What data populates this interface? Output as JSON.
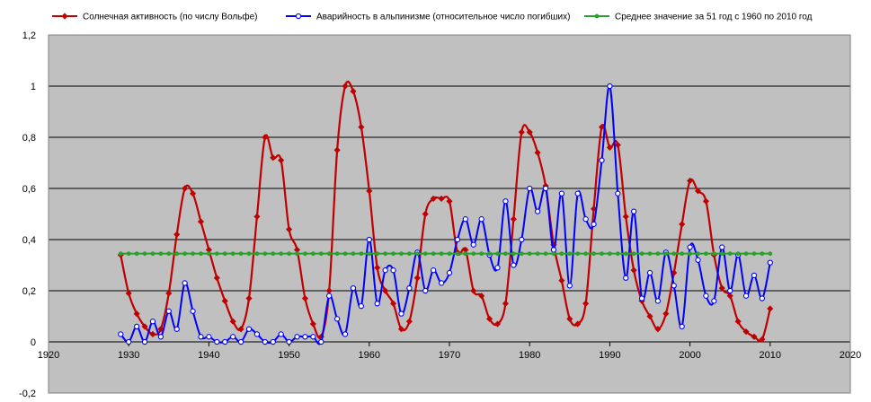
{
  "chart_data": {
    "type": "line",
    "xlim": [
      1920,
      2020
    ],
    "ylim": [
      -0.2,
      1.2
    ],
    "grid": true,
    "legend_position": "top",
    "plot_background": "#c0c0c0",
    "x_ticks": [
      "1920",
      "1930",
      "1940",
      "1950",
      "1960",
      "1970",
      "1980",
      "1990",
      "2000",
      "2010",
      "2020"
    ],
    "y_ticks": [
      "-0,2",
      "0",
      "0,2",
      "0,4",
      "0,6",
      "0,8",
      "1",
      "1,2"
    ],
    "series": [
      {
        "name": "Солнечная активность (по числу Вольфе)",
        "color": "#c00000",
        "marker": "diamond",
        "x": [
          1929,
          1930,
          1931,
          1932,
          1933,
          1934,
          1935,
          1936,
          1937,
          1938,
          1939,
          1940,
          1941,
          1942,
          1943,
          1944,
          1945,
          1946,
          1947,
          1948,
          1949,
          1950,
          1951,
          1952,
          1953,
          1954,
          1955,
          1956,
          1957,
          1958,
          1959,
          1960,
          1961,
          1962,
          1963,
          1964,
          1965,
          1966,
          1967,
          1968,
          1969,
          1970,
          1971,
          1972,
          1973,
          1974,
          1975,
          1976,
          1977,
          1978,
          1979,
          1980,
          1981,
          1982,
          1983,
          1984,
          1985,
          1986,
          1987,
          1988,
          1989,
          1990,
          1991,
          1992,
          1993,
          1994,
          1995,
          1996,
          1997,
          1998,
          1999,
          2000,
          2001,
          2002,
          2003,
          2004,
          2005,
          2006,
          2007,
          2008,
          2009,
          2010
        ],
        "y": [
          0.34,
          0.19,
          0.11,
          0.06,
          0.03,
          0.05,
          0.19,
          0.42,
          0.6,
          0.58,
          0.47,
          0.36,
          0.25,
          0.16,
          0.08,
          0.05,
          0.17,
          0.49,
          0.8,
          0.72,
          0.71,
          0.44,
          0.36,
          0.17,
          0.07,
          0.02,
          0.2,
          0.75,
          1.0,
          0.98,
          0.84,
          0.59,
          0.29,
          0.2,
          0.15,
          0.05,
          0.08,
          0.25,
          0.5,
          0.56,
          0.56,
          0.55,
          0.35,
          0.36,
          0.2,
          0.18,
          0.09,
          0.07,
          0.15,
          0.48,
          0.82,
          0.82,
          0.74,
          0.61,
          0.38,
          0.24,
          0.09,
          0.07,
          0.15,
          0.52,
          0.84,
          0.76,
          0.77,
          0.49,
          0.28,
          0.16,
          0.1,
          0.05,
          0.11,
          0.27,
          0.46,
          0.63,
          0.59,
          0.55,
          0.34,
          0.21,
          0.18,
          0.08,
          0.04,
          0.02,
          0.01,
          0.13
        ]
      },
      {
        "name": "Аварийность в альпинизме (относительное число погибших)",
        "color": "#0000ff",
        "marker": "circle",
        "x": [
          1929,
          1930,
          1931,
          1932,
          1933,
          1934,
          1935,
          1936,
          1937,
          1938,
          1939,
          1940,
          1941,
          1942,
          1943,
          1944,
          1945,
          1946,
          1947,
          1948,
          1949,
          1950,
          1951,
          1952,
          1953,
          1954,
          1955,
          1956,
          1957,
          1958,
          1959,
          1960,
          1961,
          1962,
          1963,
          1964,
          1965,
          1966,
          1967,
          1968,
          1969,
          1970,
          1971,
          1972,
          1973,
          1974,
          1975,
          1976,
          1977,
          1978,
          1979,
          1980,
          1981,
          1982,
          1983,
          1984,
          1985,
          1986,
          1987,
          1988,
          1989,
          1990,
          1991,
          1992,
          1993,
          1994,
          1995,
          1996,
          1997,
          1998,
          1999,
          2000,
          2001,
          2002,
          2003,
          2004,
          2005,
          2006,
          2007,
          2008,
          2009,
          2010
        ],
        "y": [
          0.03,
          0.0,
          0.06,
          0.0,
          0.08,
          0.02,
          0.12,
          0.05,
          0.23,
          0.12,
          0.02,
          0.02,
          0.0,
          0.0,
          0.02,
          0.0,
          0.05,
          0.03,
          0.0,
          0.0,
          0.03,
          0.0,
          0.02,
          0.02,
          0.02,
          0.0,
          0.18,
          0.09,
          0.03,
          0.21,
          0.14,
          0.4,
          0.15,
          0.28,
          0.28,
          0.11,
          0.21,
          0.35,
          0.2,
          0.28,
          0.23,
          0.27,
          0.4,
          0.48,
          0.38,
          0.48,
          0.34,
          0.29,
          0.55,
          0.3,
          0.4,
          0.6,
          0.51,
          0.6,
          0.36,
          0.58,
          0.22,
          0.58,
          0.48,
          0.46,
          0.71,
          1.0,
          0.58,
          0.25,
          0.51,
          0.17,
          0.27,
          0.16,
          0.35,
          0.22,
          0.06,
          0.37,
          0.32,
          0.18,
          0.16,
          0.37,
          0.2,
          0.34,
          0.18,
          0.26,
          0.17,
          0.31
        ]
      },
      {
        "name": "Среднее значение за 51 год с 1960 по 2010 год",
        "color": "#2ca02c",
        "marker": "circle",
        "x": [
          1929,
          1930,
          1931,
          1932,
          1933,
          1934,
          1935,
          1936,
          1937,
          1938,
          1939,
          1940,
          1941,
          1942,
          1943,
          1944,
          1945,
          1946,
          1947,
          1948,
          1949,
          1950,
          1951,
          1952,
          1953,
          1954,
          1955,
          1956,
          1957,
          1958,
          1959,
          1960,
          1961,
          1962,
          1963,
          1964,
          1965,
          1966,
          1967,
          1968,
          1969,
          1970,
          1971,
          1972,
          1973,
          1974,
          1975,
          1976,
          1977,
          1978,
          1979,
          1980,
          1981,
          1982,
          1983,
          1984,
          1985,
          1986,
          1987,
          1988,
          1989,
          1990,
          1991,
          1992,
          1993,
          1994,
          1995,
          1996,
          1997,
          1998,
          1999,
          2000,
          2001,
          2002,
          2003,
          2004,
          2005,
          2006,
          2007,
          2008,
          2009,
          2010
        ],
        "value": 0.345
      }
    ]
  }
}
